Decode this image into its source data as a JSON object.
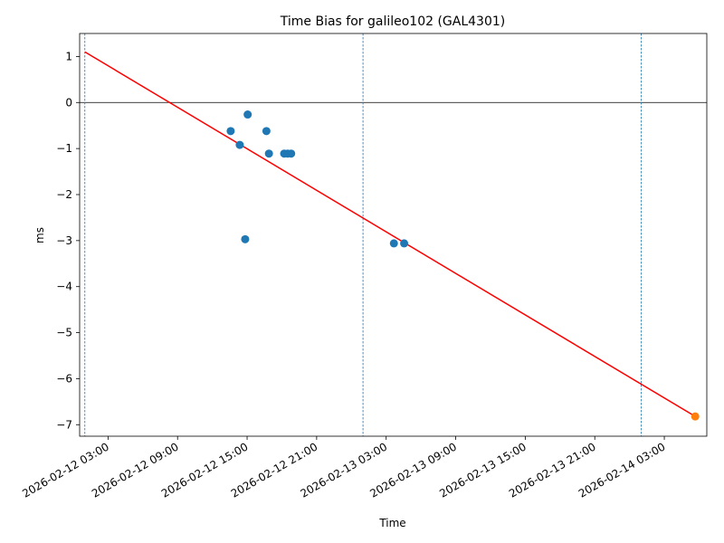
{
  "chart_data": {
    "type": "scatter",
    "title": "Time Bias for galileo102 (GAL4301)",
    "xlabel": "Time",
    "ylabel": "ms",
    "xlim": [
      "2026-02-12 00:33",
      "2026-02-14 06:40"
    ],
    "ylim": [
      -7.25,
      1.5
    ],
    "x_ticks": [
      "2026-02-12 03:00",
      "2026-02-12 09:00",
      "2026-02-12 15:00",
      "2026-02-12 21:00",
      "2026-02-13 03:00",
      "2026-02-13 09:00",
      "2026-02-13 15:00",
      "2026-02-13 21:00",
      "2026-02-14 03:00"
    ],
    "y_ticks": [
      1,
      0,
      -1,
      -2,
      -3,
      -4,
      -5,
      -6,
      -7
    ],
    "y_tick_labels": [
      "1",
      "0",
      "−1",
      "−2",
      "−3",
      "−4",
      "−5",
      "−6",
      "−7"
    ],
    "grid": false,
    "zero_line": 0,
    "vertical_lines": [
      "2026-02-12 01:00",
      "2026-02-13 01:00",
      "2026-02-14 01:00"
    ],
    "fit_line": {
      "color": "#ff0000",
      "x": [
        "2026-02-12 01:00",
        "2026-02-14 05:40"
      ],
      "y": [
        1.1,
        -6.82
      ]
    },
    "series": [
      {
        "color": "#1f77b4",
        "x": [
          "2026-02-12 13:35",
          "2026-02-12 14:22",
          "2026-02-12 14:50",
          "2026-02-12 15:03",
          "2026-02-12 16:40",
          "2026-02-12 16:53",
          "2026-02-12 18:12",
          "2026-02-12 18:30",
          "2026-02-12 18:48",
          "2026-02-13 03:40",
          "2026-02-13 04:33"
        ],
        "y": [
          -0.62,
          -0.92,
          -2.97,
          -0.26,
          -0.62,
          -1.11,
          -1.11,
          -1.11,
          -1.11,
          -3.06,
          -3.06
        ]
      },
      {
        "color": "#ff7f0e",
        "x": [
          "2026-02-14 05:40"
        ],
        "y": [
          -6.82
        ]
      }
    ]
  }
}
